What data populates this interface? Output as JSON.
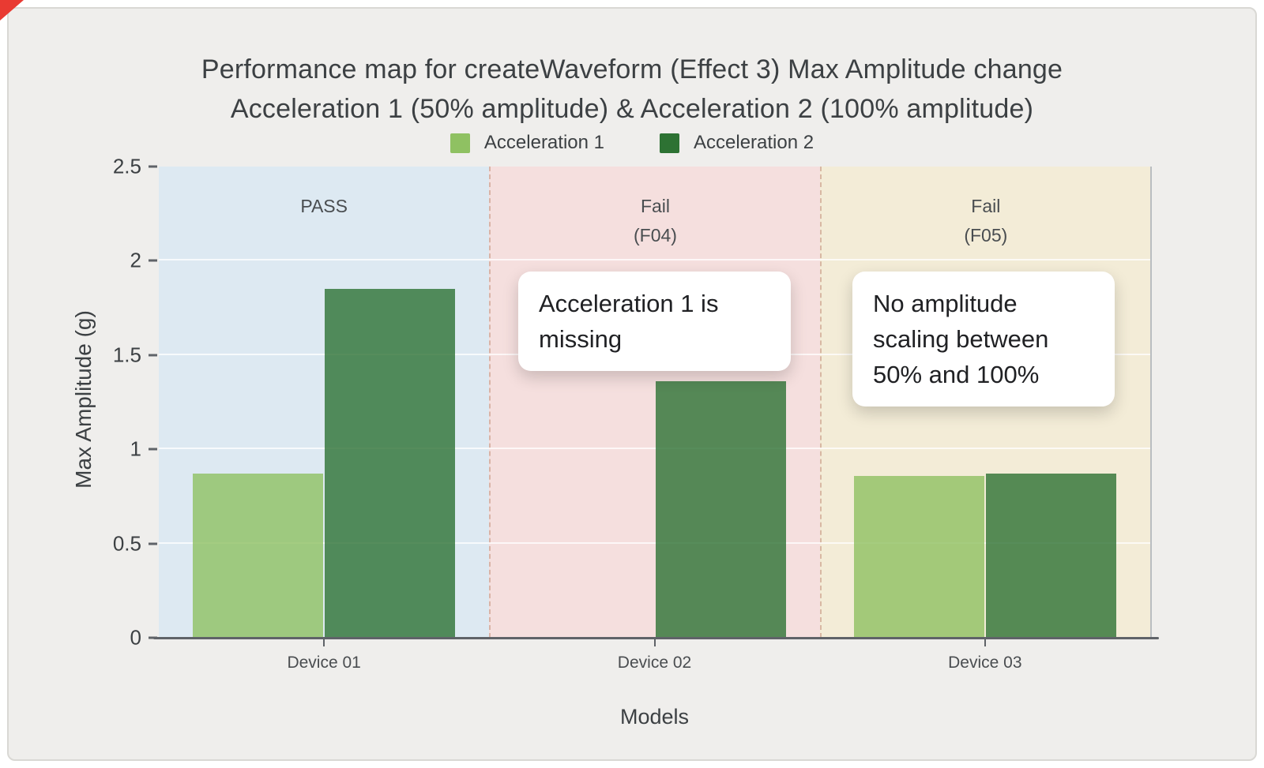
{
  "page": {
    "background": "#ffffff",
    "card_background": "#efeeec",
    "corner_marker_color": "#e93a32"
  },
  "chart_data": {
    "type": "bar",
    "title_line1": "Performance map for createWaveform (Effect 3) Max Amplitude change",
    "title_line2": "Acceleration 1 (50% amplitude) & Acceleration 2 (100% amplitude)",
    "xlabel": "Models",
    "ylabel": "Max Amplitude (g)",
    "ylim": [
      0,
      2.5
    ],
    "yticks": [
      0,
      0.5,
      1,
      1.5,
      2,
      2.5
    ],
    "ytick_labels": [
      "0",
      "0.5",
      "1",
      "1.5",
      "2",
      "2.5"
    ],
    "categories": [
      "Device 01",
      "Device 02",
      "Device 03"
    ],
    "series": [
      {
        "name": "Acceleration 1",
        "color": "#8fc162",
        "values": [
          0.87,
          null,
          0.86
        ]
      },
      {
        "name": "Acceleration 2",
        "color": "#2d7233",
        "values": [
          1.85,
          1.36,
          0.87
        ]
      }
    ],
    "zones": [
      {
        "label": "PASS",
        "sublabel": "",
        "background": "#dde9f2"
      },
      {
        "label": "Fail",
        "sublabel": "(F04)",
        "background": "#f5dfde"
      },
      {
        "label": "Fail",
        "sublabel": "(F05)",
        "background": "#f3ecd7"
      }
    ],
    "legend_position": "top-center",
    "grid": true,
    "annotations": [
      {
        "text": "Acceleration 1 is missing",
        "target": "Device 02"
      },
      {
        "text": "No amplitude scaling between 50% and 100%",
        "target": "Device 03"
      }
    ]
  }
}
